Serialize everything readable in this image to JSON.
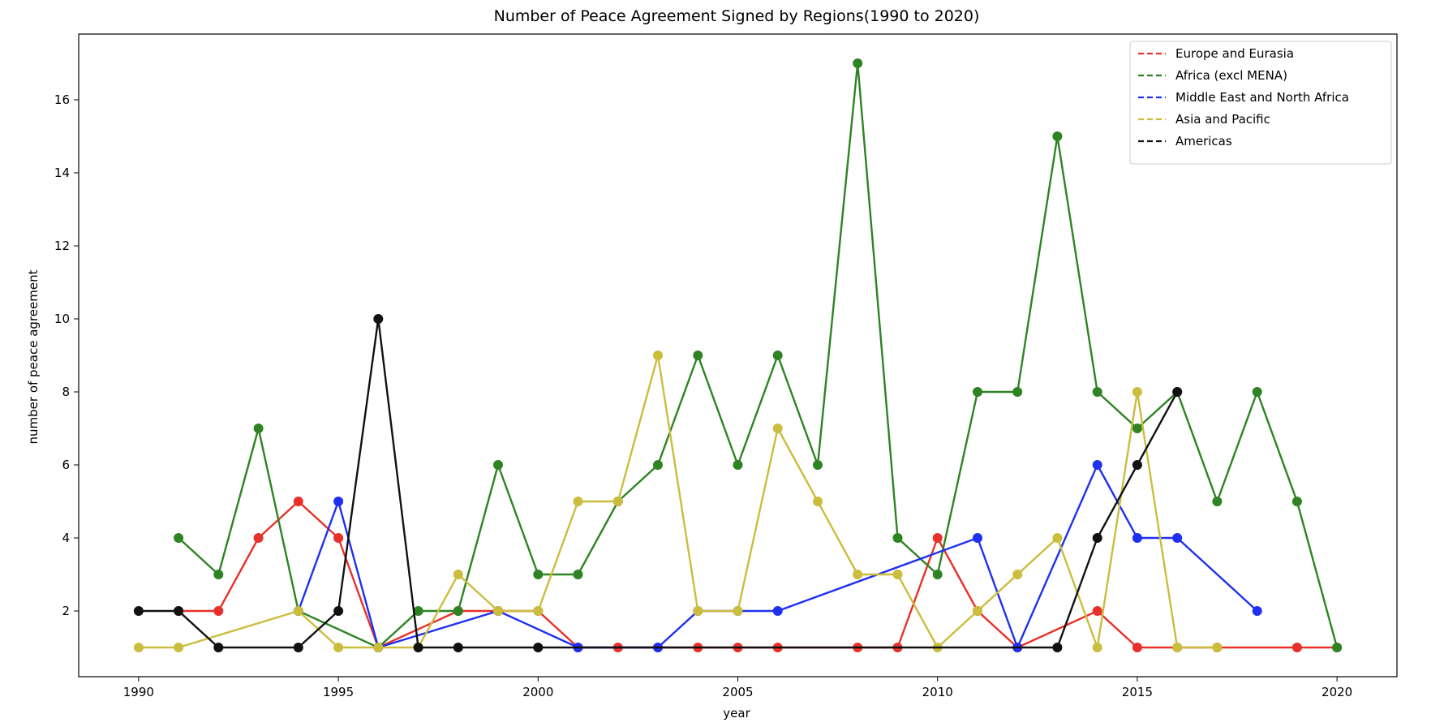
{
  "chart_data": {
    "type": "line",
    "title": "Number of Peace Agreement Signed by Regions(1990 to 2020)",
    "xlabel": "year",
    "ylabel": "number of peace agreement",
    "xlim": [
      1988.5,
      2021.5
    ],
    "ylim": [
      0.2,
      17.8
    ],
    "xticks": [
      1990,
      1995,
      2000,
      2005,
      2010,
      2015,
      2020
    ],
    "yticks": [
      2,
      4,
      6,
      8,
      10,
      12,
      14,
      16
    ],
    "grid": false,
    "legend_position": "upper-right",
    "legend_style": "dashed",
    "series": [
      {
        "name": "Europe and Eurasia",
        "color": "#e8312a",
        "points": [
          [
            1991,
            2
          ],
          [
            1992,
            2
          ],
          [
            1993,
            4
          ],
          [
            1994,
            5
          ],
          [
            1995,
            4
          ],
          [
            1996,
            1
          ],
          [
            1998,
            2
          ],
          [
            1999,
            2
          ],
          [
            2000,
            2
          ],
          [
            2001,
            1
          ],
          [
            2002,
            1
          ],
          [
            2003,
            1
          ],
          [
            2004,
            1
          ],
          [
            2005,
            1
          ],
          [
            2006,
            1
          ],
          [
            2008,
            1
          ],
          [
            2009,
            1
          ],
          [
            2010,
            4
          ],
          [
            2011,
            2
          ],
          [
            2012,
            1
          ],
          [
            2014,
            2
          ],
          [
            2015,
            1
          ],
          [
            2016,
            1
          ],
          [
            2017,
            1
          ],
          [
            2019,
            1
          ],
          [
            2020,
            1
          ]
        ]
      },
      {
        "name": "Africa (excl MENA)",
        "color": "#2e8323",
        "points": [
          [
            1991,
            4
          ],
          [
            1992,
            3
          ],
          [
            1993,
            7
          ],
          [
            1994,
            2
          ],
          [
            1996,
            1
          ],
          [
            1997,
            2
          ],
          [
            1998,
            2
          ],
          [
            1999,
            6
          ],
          [
            2000,
            3
          ],
          [
            2001,
            3
          ],
          [
            2002,
            5
          ],
          [
            2003,
            6
          ],
          [
            2004,
            9
          ],
          [
            2005,
            6
          ],
          [
            2006,
            9
          ],
          [
            2007,
            6
          ],
          [
            2008,
            17
          ],
          [
            2009,
            4
          ],
          [
            2010,
            3
          ],
          [
            2011,
            8
          ],
          [
            2012,
            8
          ],
          [
            2013,
            15
          ],
          [
            2014,
            8
          ],
          [
            2015,
            7
          ],
          [
            2016,
            8
          ],
          [
            2017,
            5
          ],
          [
            2018,
            8
          ],
          [
            2019,
            5
          ],
          [
            2020,
            1
          ]
        ]
      },
      {
        "name": "Middle East and North Africa",
        "color": "#1f30f0",
        "points": [
          [
            1994,
            2
          ],
          [
            1995,
            5
          ],
          [
            1996,
            1
          ],
          [
            1999,
            2
          ],
          [
            2001,
            1
          ],
          [
            2003,
            1
          ],
          [
            2004,
            2
          ],
          [
            2005,
            2
          ],
          [
            2006,
            2
          ],
          [
            2011,
            4
          ],
          [
            2012,
            1
          ],
          [
            2014,
            6
          ],
          [
            2015,
            4
          ],
          [
            2016,
            4
          ],
          [
            2018,
            2
          ]
        ]
      },
      {
        "name": "Asia and Pacific",
        "color": "#cbbd3d",
        "points": [
          [
            1990,
            1
          ],
          [
            1991,
            1
          ],
          [
            1994,
            2
          ],
          [
            1995,
            1
          ],
          [
            1996,
            1
          ],
          [
            1997,
            1
          ],
          [
            1998,
            3
          ],
          [
            1999,
            2
          ],
          [
            2000,
            2
          ],
          [
            2001,
            5
          ],
          [
            2002,
            5
          ],
          [
            2003,
            9
          ],
          [
            2004,
            2
          ],
          [
            2005,
            2
          ],
          [
            2006,
            7
          ],
          [
            2007,
            5
          ],
          [
            2008,
            3
          ],
          [
            2009,
            3
          ],
          [
            2010,
            1
          ],
          [
            2011,
            2
          ],
          [
            2012,
            3
          ],
          [
            2013,
            4
          ],
          [
            2014,
            1
          ],
          [
            2015,
            8
          ],
          [
            2016,
            1
          ],
          [
            2017,
            1
          ]
        ]
      },
      {
        "name": "Americas",
        "color": "#111111",
        "points": [
          [
            1990,
            2
          ],
          [
            1991,
            2
          ],
          [
            1992,
            1
          ],
          [
            1994,
            1
          ],
          [
            1995,
            2
          ],
          [
            1996,
            10
          ],
          [
            1997,
            1
          ],
          [
            1998,
            1
          ],
          [
            2000,
            1
          ],
          [
            2013,
            1
          ],
          [
            2014,
            4
          ],
          [
            2015,
            6
          ],
          [
            2016,
            8
          ]
        ]
      }
    ]
  }
}
